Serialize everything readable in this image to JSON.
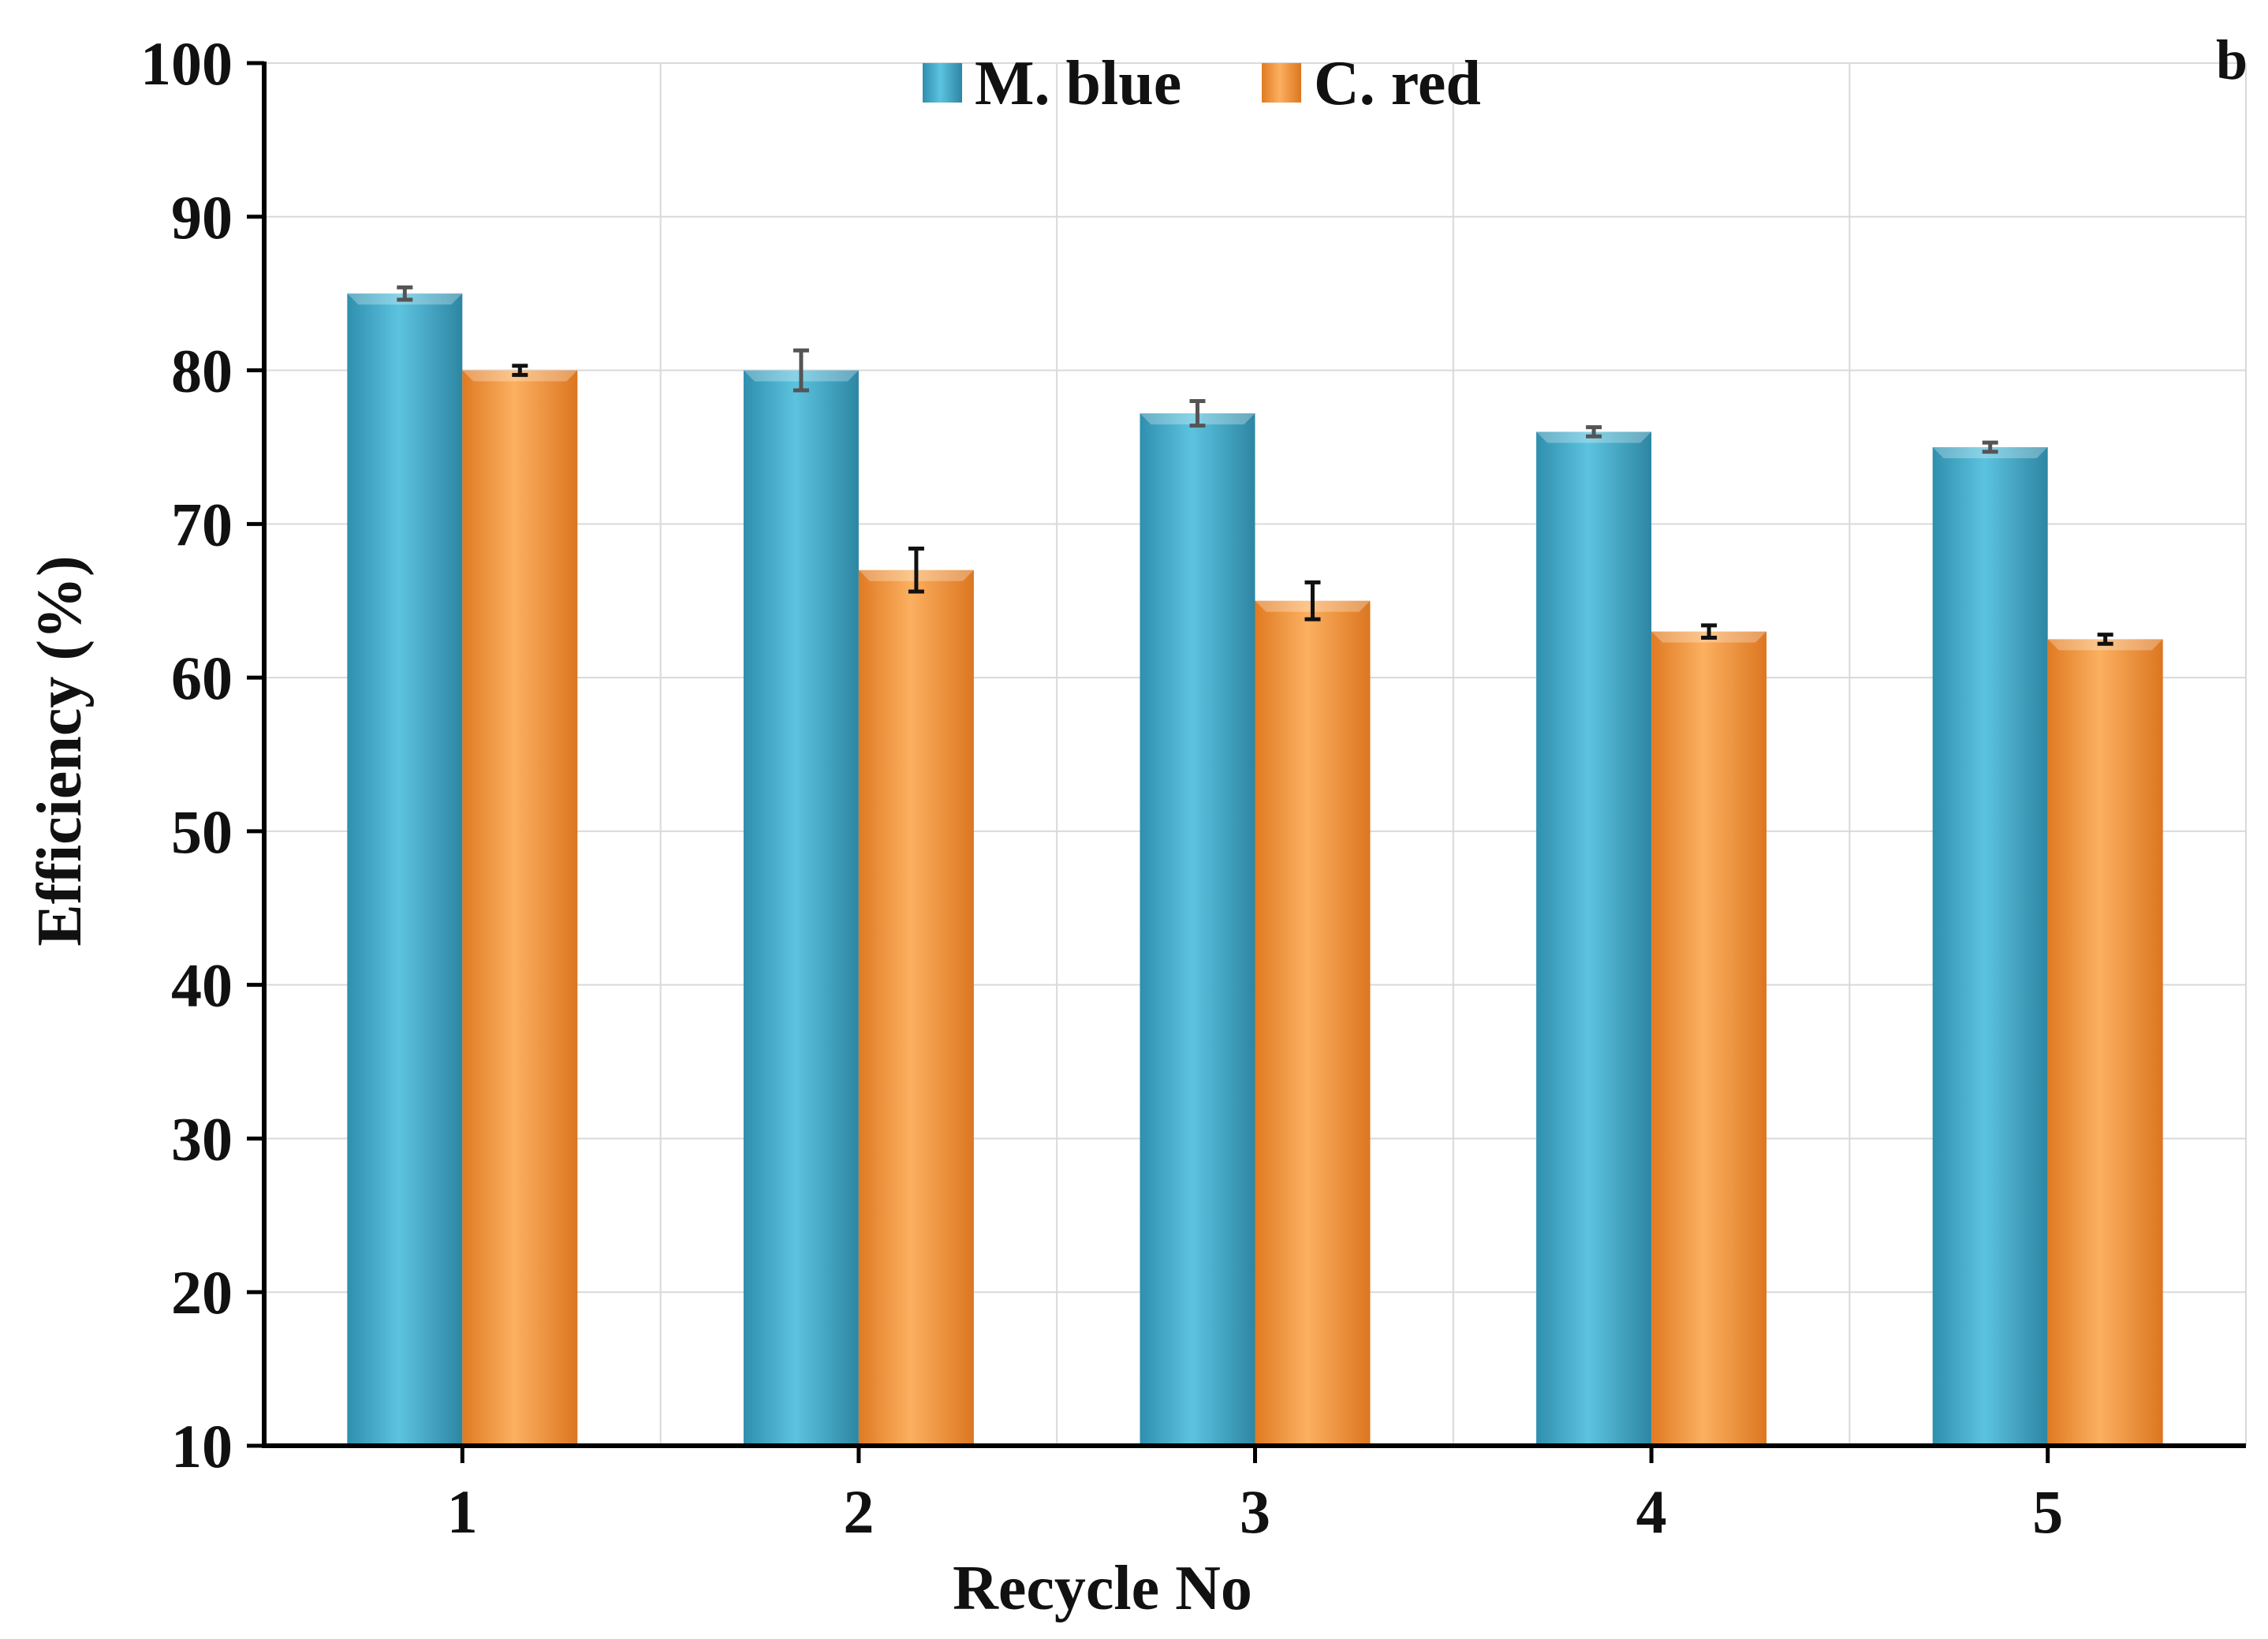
{
  "chart_data": {
    "type": "bar",
    "panel_label": "b",
    "title": "",
    "xlabel": "Recycle No",
    "ylabel": "Efficiency (%)",
    "categories": [
      "1",
      "2",
      "3",
      "4",
      "5"
    ],
    "ylim": [
      10,
      100
    ],
    "yticks": [
      "10",
      "20",
      "30",
      "40",
      "50",
      "60",
      "70",
      "80",
      "90",
      "100"
    ],
    "grid": true,
    "legend_position": "top-center",
    "series": [
      {
        "name": "M. blue",
        "color": "#4bb3d1",
        "values": [
          85,
          80,
          77.2,
          76,
          75
        ],
        "errors": [
          0.4,
          1.3,
          0.8,
          0.3,
          0.3
        ],
        "error_color": "#555555"
      },
      {
        "name": "C. red",
        "color": "#f5a04a",
        "values": [
          80,
          67,
          65,
          63,
          62.5
        ],
        "errors": [
          0.3,
          1.4,
          1.2,
          0.4,
          0.3
        ],
        "error_color": "#111111"
      }
    ]
  }
}
